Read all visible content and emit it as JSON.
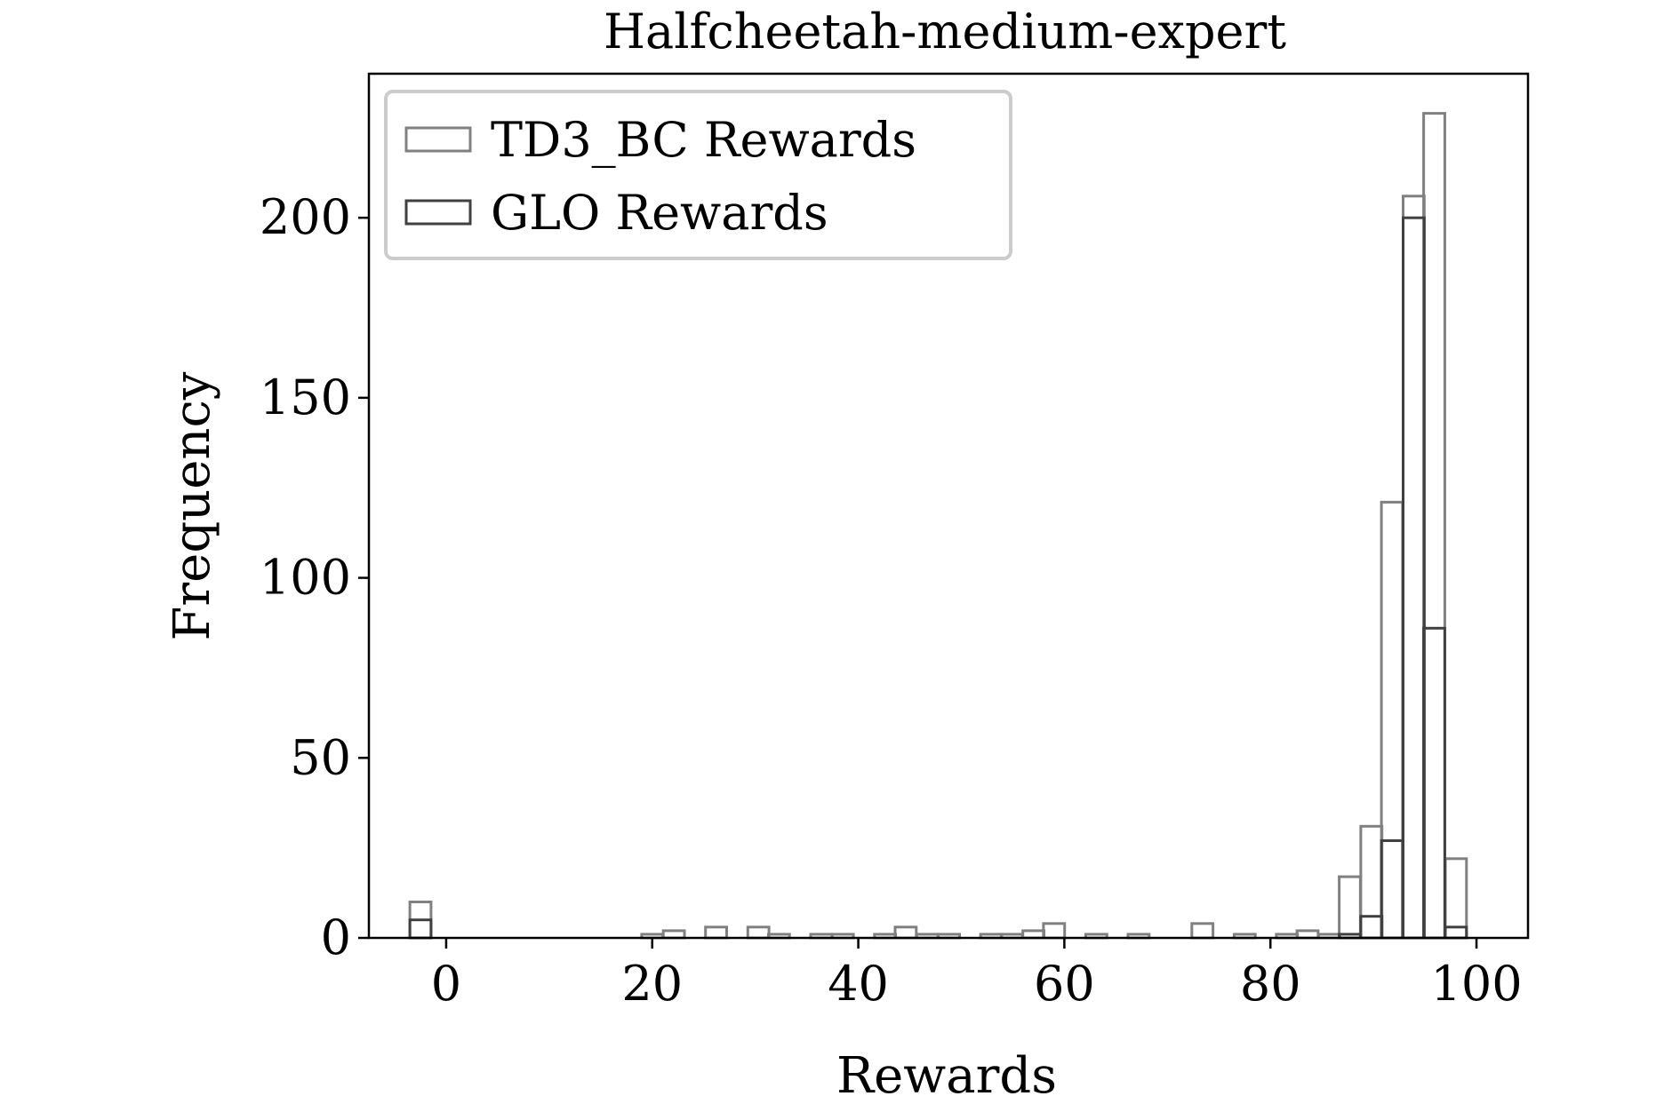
{
  "chart_data": {
    "type": "bar",
    "title": "Halfcheetah-medium-expert",
    "xlabel": "Rewards",
    "ylabel": "Frequency",
    "xlim": [
      -7.5,
      105
    ],
    "ylim": [
      0,
      240
    ],
    "xticks": [
      0,
      20,
      40,
      60,
      80,
      100
    ],
    "yticks": [
      0,
      50,
      100,
      150,
      200
    ],
    "grid": false,
    "legend_position": "top-left",
    "bin_width": 2.05,
    "series": [
      {
        "name": "TD3_BC Rewards",
        "color": "#808080",
        "bins": [
          {
            "x": -2.5,
            "count": 10
          },
          {
            "x": 20.0,
            "count": 1
          },
          {
            "x": 22.1,
            "count": 2
          },
          {
            "x": 26.2,
            "count": 3
          },
          {
            "x": 30.3,
            "count": 3
          },
          {
            "x": 32.3,
            "count": 1
          },
          {
            "x": 36.4,
            "count": 1
          },
          {
            "x": 38.5,
            "count": 1
          },
          {
            "x": 42.6,
            "count": 1
          },
          {
            "x": 44.6,
            "count": 3
          },
          {
            "x": 46.7,
            "count": 1
          },
          {
            "x": 48.8,
            "count": 1
          },
          {
            "x": 52.9,
            "count": 1
          },
          {
            "x": 54.9,
            "count": 1
          },
          {
            "x": 57.0,
            "count": 2
          },
          {
            "x": 59.0,
            "count": 4
          },
          {
            "x": 63.1,
            "count": 1
          },
          {
            "x": 67.2,
            "count": 1
          },
          {
            "x": 73.4,
            "count": 4
          },
          {
            "x": 77.5,
            "count": 1
          },
          {
            "x": 81.6,
            "count": 1
          },
          {
            "x": 83.6,
            "count": 2
          },
          {
            "x": 85.7,
            "count": 1
          },
          {
            "x": 87.7,
            "count": 17
          },
          {
            "x": 89.8,
            "count": 31
          },
          {
            "x": 91.8,
            "count": 121
          },
          {
            "x": 93.9,
            "count": 206
          },
          {
            "x": 95.9,
            "count": 229
          },
          {
            "x": 98.0,
            "count": 22
          }
        ]
      },
      {
        "name": "GLO Rewards",
        "color": "#404040",
        "bins": [
          {
            "x": -2.5,
            "count": 5
          },
          {
            "x": 87.7,
            "count": 1
          },
          {
            "x": 89.8,
            "count": 6
          },
          {
            "x": 91.8,
            "count": 27
          },
          {
            "x": 93.9,
            "count": 200
          },
          {
            "x": 95.9,
            "count": 86
          },
          {
            "x": 98.0,
            "count": 3
          }
        ]
      }
    ]
  }
}
